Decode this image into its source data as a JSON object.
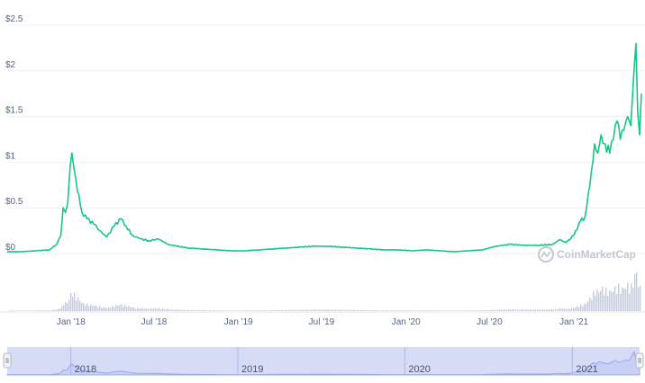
{
  "chart_data": {
    "type": "line",
    "title": "",
    "xlabel": "",
    "ylabel": "",
    "y_tick_labels": [
      "$0",
      "$0.5",
      "$1",
      "$1.5",
      "$2",
      "$2.5"
    ],
    "y_tick_values": [
      0,
      0.5,
      1,
      1.5,
      2,
      2.5
    ],
    "ylim": [
      0,
      2.5
    ],
    "x_tick_labels": [
      "Jan '18",
      "Jul '18",
      "Jan '19",
      "Jul '19",
      "Jan '20",
      "Jul '20",
      "Jan '21"
    ],
    "x_tick_dates": [
      "2018-01-01",
      "2018-07-01",
      "2019-01-01",
      "2019-07-01",
      "2020-01-01",
      "2020-07-01",
      "2021-01-01"
    ],
    "xlim": [
      "2017-08-15",
      "2021-05-28"
    ],
    "grid": true,
    "line_color": "#16c784",
    "volume_color": "#c7ccd8",
    "series": [
      {
        "x": [
          "2017-08-15",
          "2017-09-15",
          "2017-10-15",
          "2017-11-15",
          "2017-12-01",
          "2017-12-10",
          "2017-12-15",
          "2017-12-20",
          "2017-12-25",
          "2017-12-30",
          "2018-01-03",
          "2018-01-07",
          "2018-01-12",
          "2018-01-18",
          "2018-01-25",
          "2018-02-05",
          "2018-02-20",
          "2018-03-05",
          "2018-03-20",
          "2018-04-05",
          "2018-04-20",
          "2018-05-01",
          "2018-05-15",
          "2018-06-01",
          "2018-06-20",
          "2018-07-10",
          "2018-08-01",
          "2018-08-20",
          "2018-09-15",
          "2018-10-15",
          "2018-11-15",
          "2018-12-15",
          "2019-01-15",
          "2019-02-15",
          "2019-03-15",
          "2019-04-15",
          "2019-05-15",
          "2019-06-15",
          "2019-07-15",
          "2019-08-15",
          "2019-09-15",
          "2019-10-15",
          "2019-11-15",
          "2019-12-15",
          "2020-01-15",
          "2020-02-15",
          "2020-03-15",
          "2020-04-15",
          "2020-05-15",
          "2020-06-15",
          "2020-07-15",
          "2020-08-15",
          "2020-09-15",
          "2020-10-15",
          "2020-11-15",
          "2020-12-01",
          "2020-12-15",
          "2021-01-01",
          "2021-01-15",
          "2021-01-25",
          "2021-02-01",
          "2021-02-08",
          "2021-02-15",
          "2021-02-22",
          "2021-03-01",
          "2021-03-10",
          "2021-03-20",
          "2021-03-28",
          "2021-04-05",
          "2021-04-12",
          "2021-04-20",
          "2021-04-28",
          "2021-05-05",
          "2021-05-12",
          "2021-05-16",
          "2021-05-20",
          "2021-05-24",
          "2021-05-28"
        ],
        "y": [
          0.02,
          0.02,
          0.03,
          0.04,
          0.1,
          0.2,
          0.5,
          0.45,
          0.55,
          0.95,
          1.1,
          0.95,
          0.8,
          0.65,
          0.45,
          0.38,
          0.32,
          0.25,
          0.18,
          0.3,
          0.38,
          0.3,
          0.2,
          0.16,
          0.14,
          0.16,
          0.1,
          0.08,
          0.06,
          0.05,
          0.04,
          0.03,
          0.03,
          0.04,
          0.05,
          0.06,
          0.07,
          0.08,
          0.08,
          0.07,
          0.06,
          0.05,
          0.04,
          0.04,
          0.03,
          0.04,
          0.03,
          0.02,
          0.03,
          0.04,
          0.08,
          0.1,
          0.09,
          0.09,
          0.1,
          0.15,
          0.12,
          0.2,
          0.35,
          0.4,
          0.65,
          0.9,
          1.2,
          1.1,
          1.3,
          1.2,
          1.1,
          1.25,
          1.45,
          1.25,
          1.35,
          1.5,
          1.4,
          2.0,
          2.3,
          1.55,
          1.3,
          1.75
        ]
      }
    ],
    "navigator": {
      "year_labels": [
        "2018",
        "2019",
        "2020",
        "2021"
      ],
      "year_dates": [
        "2018-01-01",
        "2019-01-01",
        "2020-01-01",
        "2021-01-01"
      ],
      "fill_color": "#d6dcf6",
      "line_color": "#9ba7ef"
    }
  },
  "watermark": {
    "label": "CoinMarketCap",
    "icon": "coinmarketcap-logo-icon"
  }
}
